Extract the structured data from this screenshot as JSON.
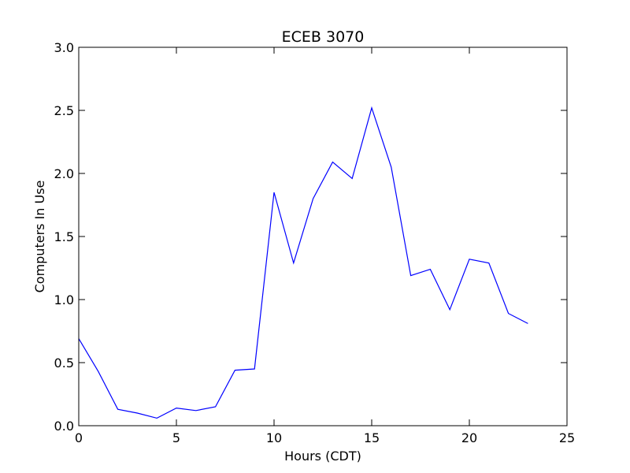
{
  "chart_data": {
    "type": "line",
    "title": "ECEB 3070",
    "xlabel": "Hours (CDT)",
    "ylabel": "Computers In Use",
    "xlim": [
      0,
      25
    ],
    "ylim": [
      0,
      3.0
    ],
    "xticks": [
      0,
      5,
      10,
      15,
      20,
      25
    ],
    "xtick_labels": [
      "0",
      "5",
      "10",
      "15",
      "20",
      "25"
    ],
    "yticks": [
      0,
      0.5,
      1.0,
      1.5,
      2.0,
      2.5,
      3.0
    ],
    "ytick_labels": [
      "0.0",
      "0.5",
      "1.0",
      "1.5",
      "2.0",
      "2.5",
      "3.0"
    ],
    "grid": false,
    "line_color": "#0000ff",
    "series": [
      {
        "x": [
          0,
          1,
          2,
          3,
          4,
          5,
          6,
          7,
          8,
          9,
          10,
          11,
          12,
          13,
          14,
          15,
          16,
          17,
          18,
          19,
          20,
          21,
          22,
          23
        ],
        "y": [
          0.69,
          0.43,
          0.13,
          0.1,
          0.06,
          0.14,
          0.12,
          0.15,
          0.44,
          0.45,
          1.85,
          1.29,
          1.8,
          2.09,
          1.96,
          2.52,
          2.05,
          1.19,
          1.24,
          0.92,
          1.32,
          1.29,
          0.89,
          0.81
        ]
      }
    ]
  }
}
